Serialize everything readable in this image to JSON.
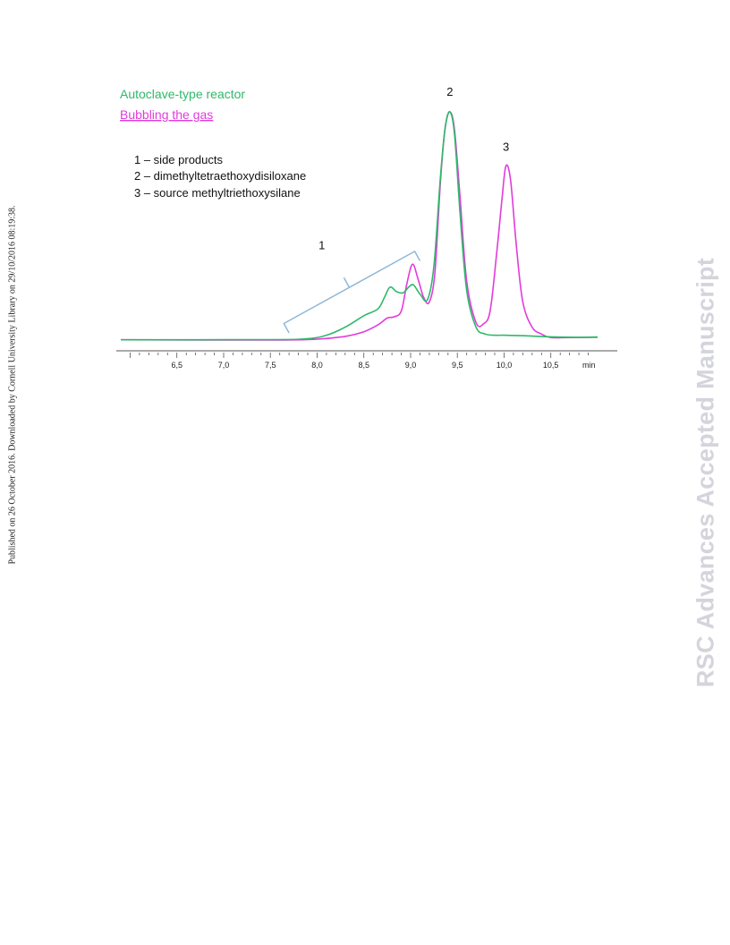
{
  "side_note": "Published on 26 October 2016. Downloaded by Cornell University Library on 29/10/2016 08:19:38.",
  "watermark": "RSC Advances Accepted Manuscript",
  "colors": {
    "autoclave": "#2fb86a",
    "bubbling": "#e23bdc",
    "bracket": "#8fb8d8",
    "axis": "#555555"
  },
  "chart_data": {
    "type": "line",
    "xlabel": "min",
    "xlim": [
      5.9,
      11.0
    ],
    "ylim": [
      0,
      100
    ],
    "x_ticks": [
      "6,5",
      "7,0",
      "7,5",
      "8,0",
      "8,5",
      "9,0",
      "9,5",
      "10,0",
      "10,5"
    ],
    "x_tick_values": [
      6.5,
      7.0,
      7.5,
      8.0,
      8.5,
      9.0,
      9.5,
      10.0,
      10.5
    ],
    "legend": [
      {
        "name": "Autoclave-type reactor",
        "color": "#2fb86a"
      },
      {
        "name": "Bubbling the gas",
        "color": "#e23bdc"
      }
    ],
    "key": [
      "1 – side products",
      "2 – dimethyltetraethoxydisiloxane",
      "3 – source methyltriethoxysilane"
    ],
    "peak_labels": [
      {
        "text": "1",
        "x": 8.05,
        "y": 40
      },
      {
        "text": "2",
        "x": 9.42,
        "y": 107
      },
      {
        "text": "3",
        "x": 10.02,
        "y": 83
      }
    ],
    "bracket": {
      "label": "1",
      "x_from": 7.7,
      "x_to": 9.1
    },
    "series": [
      {
        "name": "Autoclave-type reactor",
        "color": "#2fb86a",
        "x": [
          5.9,
          7.5,
          7.9,
          8.1,
          8.3,
          8.5,
          8.65,
          8.72,
          8.78,
          8.85,
          8.92,
          8.98,
          9.03,
          9.1,
          9.18,
          9.25,
          9.32,
          9.37,
          9.42,
          9.47,
          9.53,
          9.6,
          9.7,
          9.8,
          9.9,
          10.0,
          10.2,
          10.5,
          10.8,
          11.0
        ],
        "y": [
          0.5,
          0.6,
          1.0,
          2.5,
          6.0,
          11.0,
          14.0,
          19.0,
          23.5,
          21.5,
          21.0,
          23.5,
          24.5,
          20.5,
          18.0,
          33.0,
          72.0,
          93.0,
          100.0,
          90.0,
          55.0,
          22.0,
          6.0,
          3.0,
          2.5,
          2.5,
          2.3,
          1.8,
          1.6,
          1.7
        ]
      },
      {
        "name": "Bubbling the gas",
        "color": "#e23bdc",
        "x": [
          5.9,
          7.5,
          8.0,
          8.3,
          8.5,
          8.65,
          8.75,
          8.82,
          8.9,
          8.96,
          9.02,
          9.08,
          9.14,
          9.2,
          9.26,
          9.32,
          9.37,
          9.42,
          9.47,
          9.53,
          9.6,
          9.7,
          9.78,
          9.85,
          9.92,
          9.98,
          10.02,
          10.07,
          10.13,
          10.2,
          10.3,
          10.4,
          10.5,
          10.7,
          11.0
        ],
        "y": [
          0.5,
          0.4,
          0.8,
          2.0,
          4.0,
          7.0,
          10.0,
          10.5,
          13.0,
          25.0,
          33.5,
          27.0,
          19.0,
          17.0,
          30.0,
          70.0,
          93.0,
          100.0,
          92.0,
          62.0,
          26.0,
          8.0,
          7.5,
          13.0,
          38.0,
          63.0,
          76.5,
          70.0,
          42.0,
          17.0,
          6.0,
          3.0,
          1.5,
          1.5,
          1.6
        ]
      }
    ]
  }
}
